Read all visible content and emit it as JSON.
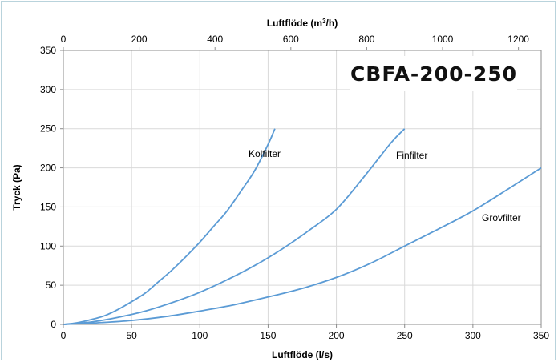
{
  "chart_data": {
    "type": "line",
    "title": "CBFA-200-250",
    "xlabel": "Luftflöde (l/s)",
    "ylabel": "Tryck (Pa)",
    "x2label_prefix": "Luftflöde (m",
    "x2label_sup": "3",
    "x2label_suffix": "/h)",
    "xlim": [
      0,
      350
    ],
    "ylim": [
      0,
      350
    ],
    "x2lim": [
      0,
      1260
    ],
    "xticks": [
      0,
      50,
      100,
      150,
      200,
      250,
      300,
      350
    ],
    "yticks": [
      0,
      50,
      100,
      150,
      200,
      250,
      300,
      350
    ],
    "x2ticks": [
      0,
      200,
      400,
      600,
      800,
      1000,
      1200
    ],
    "grid": true,
    "line_color": "#5b9bd5",
    "grid_color": "#d9d9d9",
    "series": [
      {
        "name": "Kolfilter",
        "x": [
          0,
          10,
          20,
          30,
          40,
          50,
          60,
          70,
          80,
          90,
          100,
          110,
          120,
          130,
          140,
          150,
          155
        ],
        "y": [
          0,
          2,
          6,
          11,
          19,
          29,
          40,
          55,
          70,
          87,
          105,
          125,
          145,
          170,
          196,
          230,
          250
        ]
      },
      {
        "name": "Finfilter",
        "x": [
          0,
          20,
          40,
          60,
          80,
          100,
          120,
          140,
          160,
          180,
          200,
          220,
          240,
          250
        ],
        "y": [
          0,
          3,
          9,
          17,
          28,
          41,
          57,
          75,
          96,
          120,
          147,
          188,
          232,
          250
        ]
      },
      {
        "name": "Grovfilter",
        "x": [
          0,
          25,
          50,
          75,
          100,
          125,
          150,
          175,
          200,
          225,
          250,
          275,
          300,
          325,
          350
        ],
        "y": [
          0,
          2,
          5,
          10,
          17,
          25,
          35,
          46,
          60,
          78,
          100,
          122,
          145,
          172,
          200
        ]
      }
    ]
  }
}
